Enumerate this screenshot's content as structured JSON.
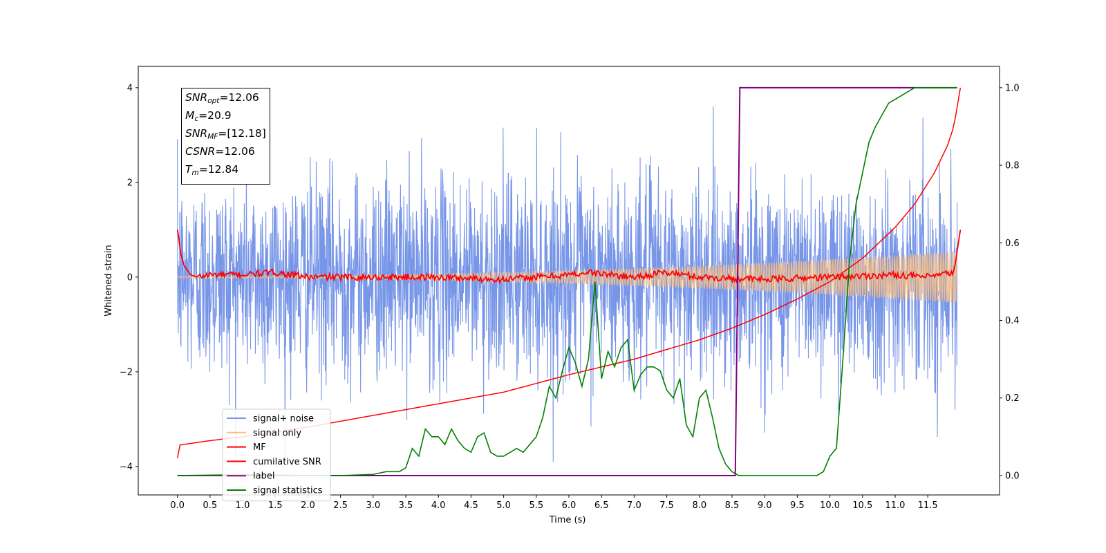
{
  "chart_data": {
    "type": "line",
    "xlabel": "Time (s)",
    "ylabel": "Whitened strain",
    "xlim": [
      -0.6,
      12.6
    ],
    "ylim_left": [
      -4.6,
      4.45
    ],
    "ylim_right": [
      -0.05,
      1.055
    ],
    "x_ticks": [
      "0.0",
      "0.5",
      "1.0",
      "1.5",
      "2.0",
      "2.5",
      "3.0",
      "3.5",
      "4.0",
      "4.5",
      "5.0",
      "5.5",
      "6.0",
      "6.5",
      "7.0",
      "7.5",
      "8.0",
      "8.5",
      "9.0",
      "9.5",
      "10.0",
      "10.5",
      "11.0",
      "11.5"
    ],
    "y_ticks_left": [
      "4",
      "2",
      "0",
      "−2",
      "−4"
    ],
    "y_ticks_right": [
      "1.0",
      "0.8",
      "0.6",
      "0.4",
      "0.2",
      "0.0"
    ],
    "annotation": [
      {
        "var": "SNR",
        "sub": "opt",
        "value": "=12.06"
      },
      {
        "var": "M",
        "sub": "c",
        "value": "=20.9"
      },
      {
        "var": "SNR",
        "sub": "MF",
        "value": "=[12.18]"
      },
      {
        "var": "CSNR",
        "sub": "",
        "value": "=12.06"
      },
      {
        "var": "T",
        "sub": "m",
        "value": "=12.84"
      }
    ],
    "series": [
      {
        "name": "signal+ noise",
        "color": "#7896e8",
        "axis": "left",
        "description": "noise band, typically within ±2.5, peaks to about ±4"
      },
      {
        "name": "signal only",
        "color": "#f5bd85",
        "axis": "left",
        "amplitude_start": 0.02,
        "amplitude_end": 0.55
      },
      {
        "name": "MF",
        "color": "#ff0000",
        "axis": "left",
        "x": [
          0.0,
          0.02,
          0.05,
          0.1,
          0.2,
          0.3,
          0.5,
          1.0,
          1.5,
          2.0,
          3.0,
          4.0,
          5.0,
          6.0,
          6.3,
          7.0,
          7.5,
          8.0,
          9.0,
          10.0,
          11.0,
          11.5,
          11.9,
          12.0
        ],
        "y": [
          1.0,
          0.85,
          0.5,
          0.25,
          0.05,
          0.0,
          0.05,
          0.05,
          0.1,
          0.0,
          0.0,
          0.0,
          -0.05,
          0.05,
          0.1,
          0.0,
          0.1,
          0.0,
          -0.05,
          0.0,
          0.05,
          0.0,
          0.1,
          1.0
        ]
      },
      {
        "name": "cumilative SNR",
        "color": "#ff0000",
        "axis": "right",
        "x": [
          0.0,
          0.01,
          0.5,
          1.0,
          2.0,
          3.0,
          4.0,
          5.0,
          6.0,
          7.0,
          8.0,
          8.5,
          9.0,
          9.5,
          10.0,
          10.5,
          11.0,
          11.3,
          11.6,
          11.8,
          11.9,
          12.0
        ],
        "y": [
          0.045,
          0.078,
          0.09,
          0.1,
          0.125,
          0.155,
          0.185,
          0.215,
          0.26,
          0.3,
          0.35,
          0.38,
          0.415,
          0.455,
          0.5,
          0.56,
          0.64,
          0.7,
          0.78,
          0.85,
          0.9,
          1.0
        ]
      },
      {
        "name": "label",
        "color": "#800080",
        "axis": "right",
        "x": [
          0.0,
          8.55,
          8.62,
          11.95
        ],
        "y": [
          0.0,
          0.0,
          1.0,
          1.0
        ]
      },
      {
        "name": "signal statistics",
        "color": "#008000",
        "axis": "right",
        "x": [
          0.0,
          1.0,
          2.0,
          2.5,
          3.0,
          3.2,
          3.4,
          3.5,
          3.6,
          3.7,
          3.8,
          3.9,
          4.0,
          4.1,
          4.2,
          4.3,
          4.4,
          4.5,
          4.6,
          4.7,
          4.8,
          4.9,
          5.0,
          5.1,
          5.2,
          5.3,
          5.4,
          5.5,
          5.6,
          5.7,
          5.8,
          5.9,
          6.0,
          6.1,
          6.2,
          6.3,
          6.4,
          6.5,
          6.6,
          6.7,
          6.8,
          6.9,
          7.0,
          7.1,
          7.2,
          7.3,
          7.4,
          7.5,
          7.6,
          7.7,
          7.8,
          7.9,
          8.0,
          8.1,
          8.2,
          8.3,
          8.4,
          8.5,
          8.6,
          8.7,
          8.8,
          8.9,
          9.0,
          9.2,
          9.4,
          9.6,
          9.8,
          9.9,
          10.0,
          10.1,
          10.2,
          10.3,
          10.4,
          10.5,
          10.6,
          10.7,
          10.8,
          10.9,
          11.0,
          11.1,
          11.2,
          11.3,
          11.4,
          11.6,
          11.8,
          11.95
        ],
        "y": [
          0.0,
          0.002,
          0.0,
          0.0,
          0.003,
          0.01,
          0.01,
          0.02,
          0.07,
          0.05,
          0.12,
          0.1,
          0.1,
          0.08,
          0.12,
          0.09,
          0.07,
          0.06,
          0.1,
          0.11,
          0.06,
          0.05,
          0.05,
          0.06,
          0.07,
          0.06,
          0.08,
          0.1,
          0.15,
          0.23,
          0.2,
          0.27,
          0.33,
          0.29,
          0.23,
          0.3,
          0.5,
          0.25,
          0.32,
          0.28,
          0.33,
          0.35,
          0.22,
          0.26,
          0.28,
          0.28,
          0.27,
          0.22,
          0.2,
          0.25,
          0.13,
          0.1,
          0.2,
          0.22,
          0.15,
          0.07,
          0.03,
          0.01,
          0.0,
          0.0,
          0.0,
          0.0,
          0.0,
          0.0,
          0.0,
          0.0,
          0.0,
          0.01,
          0.05,
          0.07,
          0.3,
          0.55,
          0.7,
          0.78,
          0.86,
          0.9,
          0.93,
          0.96,
          0.97,
          0.98,
          0.99,
          1.0,
          1.0,
          1.0,
          1.0,
          1.0
        ]
      }
    ]
  }
}
